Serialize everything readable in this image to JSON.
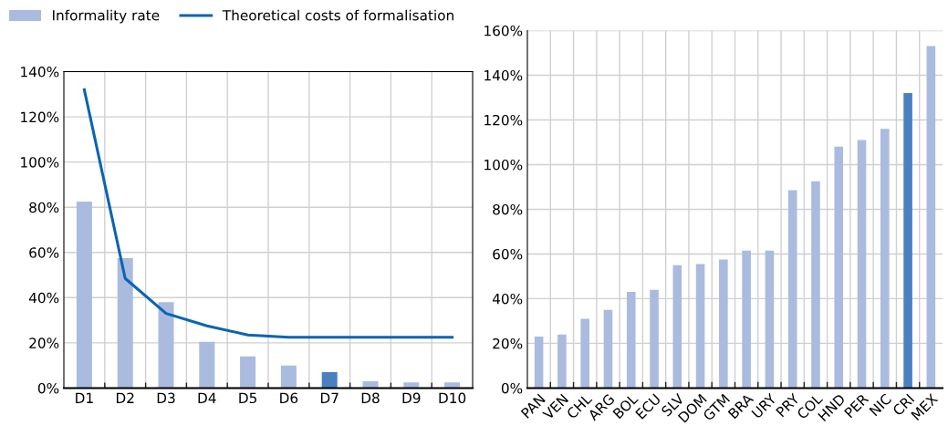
{
  "chart_data": [
    {
      "type": "bar",
      "categories": [
        "D1",
        "D2",
        "D3",
        "D4",
        "D5",
        "D6",
        "D7",
        "D8",
        "D9",
        "D10"
      ],
      "series": [
        {
          "name": "Informality rate",
          "type": "bar",
          "color": "#aabbdf",
          "colors": [
            "#aabbdf",
            "#aabbdf",
            "#aabbdf",
            "#aabbdf",
            "#aabbdf",
            "#aabbdf",
            "#4a80c0",
            "#aabbdf",
            "#aabbdf",
            "#aabbdf"
          ],
          "values": [
            82.5,
            57.5,
            38,
            20.5,
            14,
            10,
            7,
            3,
            2.5,
            2.5
          ]
        },
        {
          "name": "Theoretical costs of formalisation",
          "type": "line",
          "color": "#0a64b4",
          "values": [
            132,
            48.5,
            33,
            27.5,
            23.5,
            22.5,
            22.5,
            22.5,
            22.5,
            22.5
          ]
        }
      ],
      "ylim": [
        0,
        140
      ],
      "yticks": [
        {
          "value": 0,
          "label": "0%"
        },
        {
          "value": 20,
          "label": "20%"
        },
        {
          "value": 40,
          "label": "40%"
        },
        {
          "value": 60,
          "label": "60%"
        },
        {
          "value": 80,
          "label": "80%"
        },
        {
          "value": 100,
          "label": "100%"
        },
        {
          "value": 120,
          "label": "120%"
        },
        {
          "value": 140,
          "label": "140%"
        }
      ],
      "grid": true,
      "legend": "top left",
      "marker": "none",
      "line_style": "solid"
    },
    {
      "type": "bar",
      "categories": [
        "PAN",
        "VEN",
        "CHL",
        "ARG",
        "BOL",
        "ECU",
        "SLV",
        "DOM",
        "GTM",
        "BRA",
        "URY",
        "PRY",
        "COL",
        "HND",
        "PER",
        "NIC",
        "CRI",
        "MEX"
      ],
      "values": [
        23,
        24,
        31,
        35,
        43,
        44,
        55,
        55.5,
        57.5,
        61.5,
        61.5,
        88.5,
        92.5,
        108,
        111,
        116,
        132,
        153
      ],
      "colors": [
        "#aabbdf",
        "#aabbdf",
        "#aabbdf",
        "#aabbdf",
        "#aabbdf",
        "#aabbdf",
        "#aabbdf",
        "#aabbdf",
        "#aabbdf",
        "#aabbdf",
        "#aabbdf",
        "#aabbdf",
        "#aabbdf",
        "#aabbdf",
        "#aabbdf",
        "#aabbdf",
        "#4a80c0",
        "#aabbdf"
      ],
      "ylim": [
        0,
        160
      ],
      "yticks": [
        {
          "value": 0,
          "label": "0%"
        },
        {
          "value": 20,
          "label": "20%"
        },
        {
          "value": 40,
          "label": "40%"
        },
        {
          "value": 60,
          "label": "60%"
        },
        {
          "value": 80,
          "label": "80%"
        },
        {
          "value": 100,
          "label": "100%"
        },
        {
          "value": 120,
          "label": "120%"
        },
        {
          "value": 140,
          "label": "140%"
        },
        {
          "value": 160,
          "label": "160%"
        }
      ],
      "grid": true
    }
  ]
}
